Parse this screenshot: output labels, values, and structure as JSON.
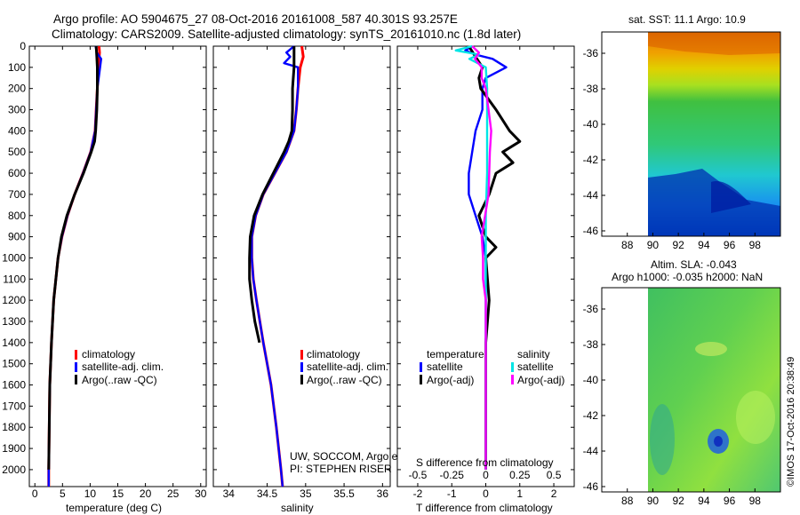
{
  "header": {
    "title_line1": "Argo profile: AO 5904675_27 08-Oct-2016 20161008_587 40.301S 93.257E",
    "title_line2": "Climatology: CARS2009. Satellite-adjusted climatology: synTS_20161010.nc (1.8d later)"
  },
  "colors": {
    "climatology": "#ff0000",
    "satellite": "#0000ff",
    "argo": "#000000",
    "sal_satellite": "#00e5e5",
    "sal_argo": "#ff00ff"
  },
  "chart_data": [
    {
      "type": "line",
      "id": "temperature",
      "xlabel": "temperature (deg C)",
      "ylabel": "",
      "xlim": [
        -1,
        31
      ],
      "ylim": [
        2080,
        0
      ],
      "xticks": [
        0,
        5,
        10,
        15,
        20,
        25,
        30
      ],
      "yticks": [
        0,
        100,
        200,
        300,
        400,
        500,
        600,
        700,
        800,
        900,
        1000,
        1100,
        1200,
        1300,
        1400,
        1500,
        1600,
        1700,
        1800,
        1900,
        2000
      ],
      "legend": [
        "climatology",
        "satellite-adj. clim.",
        "Argo(..raw -QC)"
      ],
      "legend_position": "bottom-center",
      "series": [
        {
          "name": "climatology",
          "depth": [
            0,
            30,
            60,
            100,
            200,
            300,
            400,
            500,
            600,
            700,
            800,
            900,
            1000,
            1200,
            1400,
            1600,
            1800,
            2000,
            2080
          ],
          "values": [
            11.6,
            11.7,
            11.6,
            11.5,
            11.3,
            11.1,
            10.9,
            10.1,
            8.7,
            7.2,
            5.9,
            4.9,
            4.2,
            3.4,
            3.0,
            2.7,
            2.6,
            2.5,
            2.5
          ]
        },
        {
          "name": "satellite-adj. clim.",
          "depth": [
            0,
            30,
            60,
            100,
            200,
            300,
            400,
            500,
            600,
            700,
            800,
            900,
            1000,
            1200,
            1400,
            1600,
            1800,
            2000,
            2080
          ],
          "values": [
            11.0,
            11.2,
            12.0,
            11.8,
            11.3,
            11.1,
            10.9,
            10.1,
            8.7,
            7.2,
            5.9,
            4.9,
            4.2,
            3.4,
            3.0,
            2.7,
            2.6,
            2.5,
            2.5
          ]
        },
        {
          "name": "Argo(..raw -QC)",
          "depth": [
            0,
            50,
            100,
            200,
            300,
            400,
            450,
            500,
            600,
            700,
            800,
            900,
            1000,
            1200,
            1400,
            1600,
            1800,
            2000
          ],
          "values": [
            11.1,
            11.2,
            11.3,
            11.3,
            11.2,
            11.0,
            10.8,
            10.2,
            8.8,
            7.2,
            5.8,
            4.8,
            4.2,
            3.4,
            3.0,
            2.7,
            2.6,
            2.5
          ]
        }
      ]
    },
    {
      "type": "line",
      "id": "salinity",
      "xlabel": "salinity",
      "ylabel": "",
      "xlim": [
        33.8,
        36.1
      ],
      "ylim": [
        2080,
        0
      ],
      "xticks": [
        34,
        34.5,
        35,
        35.5,
        36
      ],
      "xtick_labels": [
        "34",
        "34.5",
        "35",
        "35.5",
        "36"
      ],
      "legend": [
        "climatology",
        "satellite-adj. clim.",
        "Argo(..raw -QC)"
      ],
      "legend_position": "bottom-center",
      "annotations": [
        "UW, SOCCOM, Argo equivalent",
        "PI: STEPHEN RISER"
      ],
      "series": [
        {
          "name": "climatology",
          "depth": [
            0,
            50,
            100,
            200,
            300,
            400,
            500,
            600,
            700,
            800,
            900,
            1000,
            1100,
            1200,
            1400,
            1600,
            1800,
            2000,
            2080
          ],
          "values": [
            34.95,
            34.97,
            34.93,
            34.9,
            34.88,
            34.85,
            34.75,
            34.6,
            34.45,
            34.35,
            34.3,
            34.3,
            34.32,
            34.36,
            34.45,
            34.55,
            34.62,
            34.68,
            34.7
          ]
        },
        {
          "name": "satellite-adj. clim.",
          "depth": [
            0,
            30,
            50,
            80,
            100,
            200,
            300,
            400,
            500,
            600,
            700,
            800,
            900,
            1000,
            1100,
            1200,
            1400,
            1600,
            1800,
            2000,
            2080
          ],
          "values": [
            34.85,
            34.75,
            34.8,
            34.72,
            34.9,
            34.9,
            34.88,
            34.85,
            34.75,
            34.6,
            34.45,
            34.35,
            34.3,
            34.3,
            34.32,
            34.36,
            34.45,
            34.55,
            34.62,
            34.68,
            34.7
          ]
        },
        {
          "name": "Argo(..raw -QC)",
          "depth": [
            0,
            100,
            200,
            300,
            400,
            450,
            500,
            600,
            700,
            800,
            900,
            1000,
            1100,
            1200,
            1300,
            1400
          ],
          "values": [
            34.85,
            34.85,
            34.83,
            34.83,
            34.82,
            34.78,
            34.72,
            34.58,
            34.44,
            34.33,
            34.28,
            34.27,
            34.27,
            34.3,
            34.34,
            34.4
          ]
        }
      ]
    },
    {
      "type": "line",
      "id": "differences",
      "xlabel": "T difference from climatology",
      "xlabel_top": "S difference from climatology",
      "xlim": [
        -2.6,
        2.6
      ],
      "ylim": [
        2080,
        0
      ],
      "xticks": [
        -2,
        -1,
        0,
        1,
        2
      ],
      "sal_xticks": [
        -0.5,
        -0.25,
        0,
        0.25,
        0.5
      ],
      "sal_xtick_labels": [
        "-0.5",
        "-0.25",
        "0",
        "0.25",
        "0.5"
      ],
      "legend_headers": [
        "temperature",
        "salinity"
      ],
      "legend": [
        "satellite",
        "Argo(-adj)",
        "satellite",
        "Argo(-adj)"
      ],
      "legend_position": "bottom-center",
      "series": [
        {
          "name": "T satellite",
          "depth": [
            0,
            20,
            40,
            60,
            100,
            150,
            200,
            300,
            400,
            500,
            600,
            700,
            800,
            900,
            1000,
            1200,
            1400,
            1600,
            1800,
            2000
          ],
          "values": [
            -0.4,
            -0.6,
            -0.3,
            0.2,
            0.6,
            0.0,
            -0.1,
            -0.1,
            -0.3,
            -0.4,
            -0.5,
            -0.5,
            -0.3,
            -0.1,
            0.0,
            0.0,
            0.0,
            0.0,
            0.0,
            0.0
          ]
        },
        {
          "name": "T Argo(-adj)",
          "depth": [
            0,
            50,
            100,
            150,
            200,
            300,
            400,
            450,
            500,
            550,
            600,
            700,
            800,
            900,
            950,
            1000,
            1200,
            1400,
            1600,
            1800,
            2000
          ],
          "values": [
            -0.5,
            -0.3,
            -0.1,
            -0.2,
            -0.15,
            0.3,
            0.7,
            1.0,
            0.5,
            0.8,
            0.3,
            0.1,
            -0.2,
            0.0,
            0.3,
            0.0,
            0.1,
            0.0,
            0.0,
            0.0,
            0.0
          ]
        },
        {
          "name": "S satellite",
          "depth": [
            0,
            20,
            40,
            60,
            100,
            200,
            400,
            600,
            800,
            1000,
            1200,
            1400,
            1600,
            1800,
            2000
          ],
          "values": [
            -0.1,
            -0.22,
            -0.05,
            -0.12,
            0.0,
            0.01,
            0.01,
            0.01,
            0.0,
            0.0,
            0.0,
            0.0,
            0.0,
            0.0,
            0.0
          ]
        },
        {
          "name": "S Argo(-adj)",
          "depth": [
            0,
            30,
            60,
            100,
            150,
            200,
            300,
            400,
            500,
            700,
            900,
            1000,
            1100,
            1200,
            1400,
            1600,
            1800,
            2000
          ],
          "values": [
            -0.1,
            -0.05,
            -0.08,
            -0.03,
            -0.03,
            0.0,
            0.02,
            0.04,
            0.03,
            0.02,
            -0.03,
            -0.02,
            -0.02,
            0.0,
            0.0,
            0.0,
            0.0,
            0.0
          ]
        }
      ]
    },
    {
      "type": "heatmap",
      "id": "sst_map",
      "title": "sat. SST: 11.1 Argo: 10.9",
      "xlim": [
        86,
        100
      ],
      "ylim": [
        -46.3,
        -34.8
      ],
      "xticks": [
        88,
        90,
        92,
        94,
        96,
        98
      ],
      "yticks": [
        -36,
        -38,
        -40,
        -42,
        -44,
        -46
      ],
      "data_xrange": [
        90,
        100
      ]
    },
    {
      "type": "heatmap",
      "id": "sla_map",
      "title_line1": "Altim. SLA: -0.043",
      "title_line2": "Argo h1000: -0.035 h2000: NaN",
      "xlim": [
        86,
        100
      ],
      "ylim": [
        -46.3,
        -34.8
      ],
      "xticks": [
        88,
        90,
        92,
        94,
        96,
        98
      ],
      "yticks": [
        -36,
        -38,
        -40,
        -42,
        -44,
        -46
      ],
      "data_xrange": [
        90,
        100
      ]
    }
  ],
  "footer": {
    "imos_stamp": "©IMOS 17-Oct-2016 20:38:49"
  }
}
